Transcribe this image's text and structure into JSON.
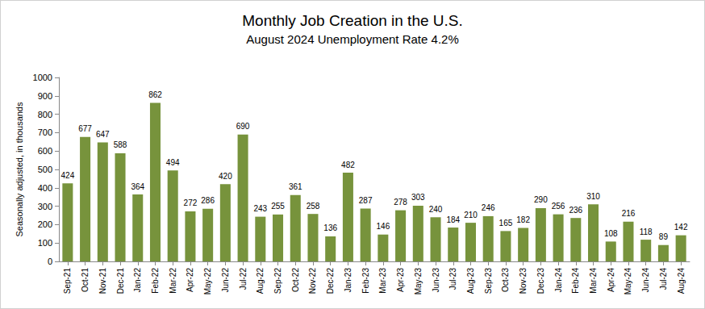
{
  "chart_data": {
    "type": "bar",
    "title": "Monthly Job Creation in the U.S.",
    "subtitle": "August 2024 Unemployment Rate 4.2%",
    "y_label": "Seasonally adjusted, in thousands",
    "categories": [
      "Sep-21",
      "Oct-21",
      "Nov-21",
      "Dec-21",
      "Jan-22",
      "Feb-22",
      "Mar-22",
      "Apr-22",
      "May-22",
      "Jun-22",
      "Jul-22",
      "Aug-22",
      "Sep-22",
      "Oct-22",
      "Nov-22",
      "Dec-22",
      "Jan-23",
      "Feb-23",
      "Mar-23",
      "Apr-23",
      "May-23",
      "Jun-23",
      "Jul-23",
      "Aug-23",
      "Sep-23",
      "Oct-23",
      "Nov-23",
      "Dec-23",
      "Jan-24",
      "Feb-24",
      "Mar-24",
      "Apr-24",
      "May-24",
      "Jun-24",
      "Jul-24",
      "Aug-24"
    ],
    "values": [
      424,
      677,
      647,
      588,
      364,
      862,
      494,
      272,
      286,
      420,
      690,
      243,
      255,
      361,
      258,
      136,
      482,
      287,
      146,
      278,
      303,
      240,
      184,
      210,
      246,
      165,
      182,
      290,
      256,
      236,
      310,
      108,
      216,
      118,
      89,
      142
    ],
    "color": "#77933c",
    "ylim": [
      0,
      1000
    ],
    "yticks": [
      0,
      100,
      200,
      300,
      400,
      500,
      600,
      700,
      800,
      900,
      1000
    ],
    "grid": false,
    "data_labels": true
  }
}
